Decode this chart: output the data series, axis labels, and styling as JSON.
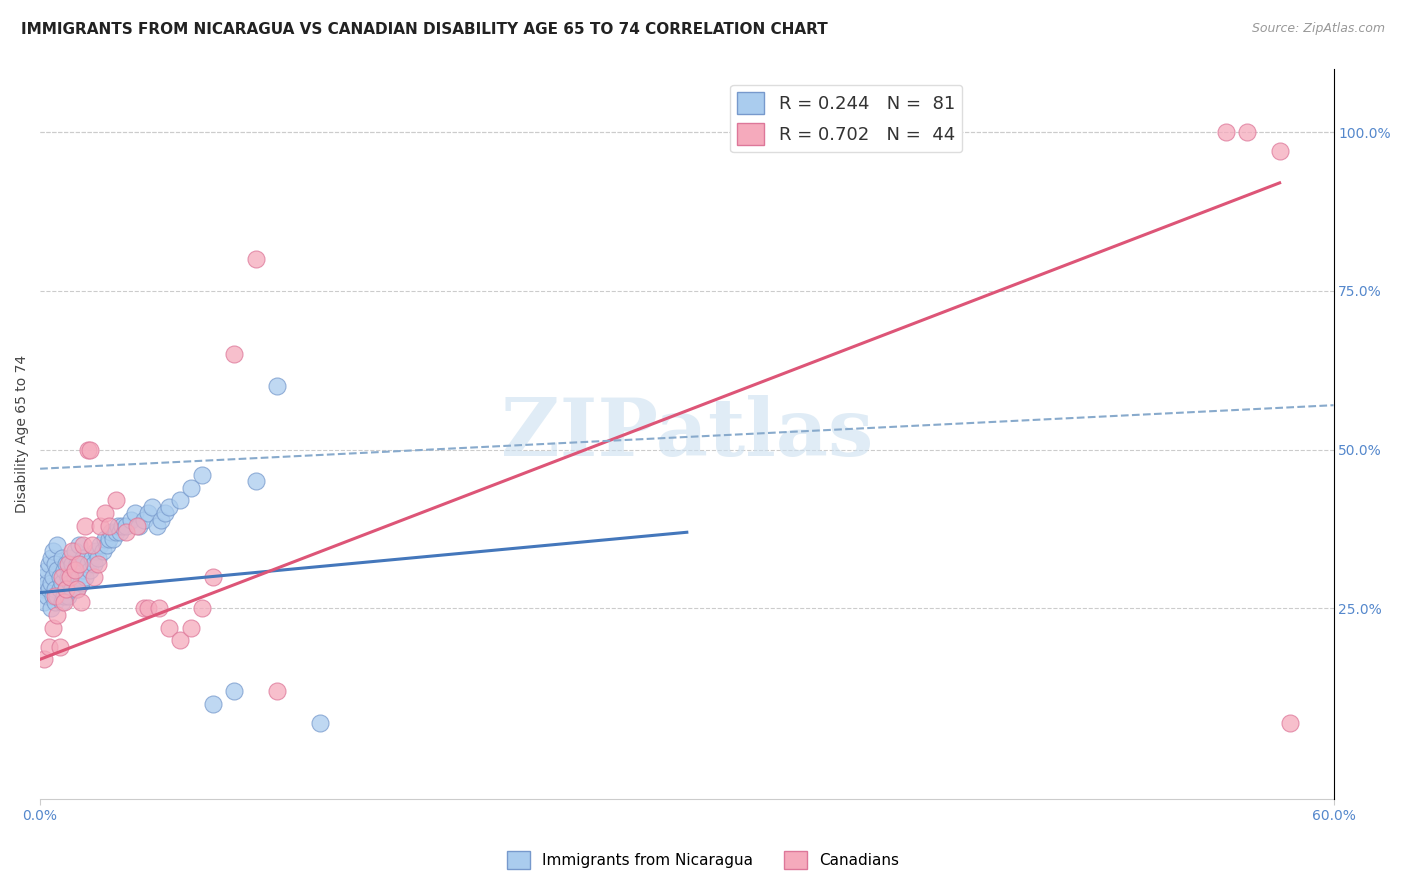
{
  "title": "IMMIGRANTS FROM NICARAGUA VS CANADIAN DISABILITY AGE 65 TO 74 CORRELATION CHART",
  "source": "Source: ZipAtlas.com",
  "ylabel": "Disability Age 65 to 74",
  "yticks": [
    "25.0%",
    "50.0%",
    "75.0%",
    "100.0%"
  ],
  "ytick_vals": [
    0.25,
    0.5,
    0.75,
    1.0
  ],
  "xmin": 0.0,
  "xmax": 0.6,
  "ymin": -0.05,
  "ymax": 1.1,
  "legend_r1": "R = 0.244",
  "legend_n1": "N =  81",
  "legend_r2": "R = 0.702",
  "legend_n2": "N =  44",
  "blue_color": "#aaccee",
  "pink_color": "#f5aabc",
  "blue_edge": "#7799cc",
  "pink_edge": "#dd7799",
  "trend_blue": "#4477bb",
  "trend_pink": "#dd5577",
  "trend_dashed_color": "#88aacc",
  "blue_scatter_x": [
    0.001,
    0.002,
    0.002,
    0.003,
    0.003,
    0.003,
    0.004,
    0.004,
    0.005,
    0.005,
    0.005,
    0.006,
    0.006,
    0.006,
    0.007,
    0.007,
    0.007,
    0.008,
    0.008,
    0.008,
    0.009,
    0.009,
    0.01,
    0.01,
    0.01,
    0.011,
    0.011,
    0.012,
    0.012,
    0.013,
    0.013,
    0.014,
    0.014,
    0.015,
    0.015,
    0.016,
    0.016,
    0.017,
    0.017,
    0.018,
    0.018,
    0.019,
    0.02,
    0.02,
    0.021,
    0.022,
    0.023,
    0.024,
    0.025,
    0.026,
    0.027,
    0.028,
    0.029,
    0.03,
    0.031,
    0.032,
    0.033,
    0.034,
    0.035,
    0.036,
    0.037,
    0.038,
    0.04,
    0.042,
    0.044,
    0.046,
    0.048,
    0.05,
    0.052,
    0.054,
    0.056,
    0.058,
    0.06,
    0.065,
    0.07,
    0.075,
    0.08,
    0.09,
    0.1,
    0.11,
    0.13
  ],
  "blue_scatter_y": [
    0.28,
    0.26,
    0.3,
    0.27,
    0.29,
    0.31,
    0.28,
    0.32,
    0.25,
    0.29,
    0.33,
    0.27,
    0.3,
    0.34,
    0.26,
    0.28,
    0.32,
    0.27,
    0.31,
    0.35,
    0.28,
    0.3,
    0.26,
    0.29,
    0.33,
    0.27,
    0.31,
    0.28,
    0.32,
    0.27,
    0.3,
    0.29,
    0.33,
    0.28,
    0.32,
    0.3,
    0.34,
    0.28,
    0.32,
    0.3,
    0.35,
    0.29,
    0.31,
    0.33,
    0.3,
    0.32,
    0.31,
    0.33,
    0.32,
    0.34,
    0.33,
    0.35,
    0.34,
    0.36,
    0.35,
    0.36,
    0.37,
    0.36,
    0.37,
    0.38,
    0.37,
    0.38,
    0.38,
    0.39,
    0.4,
    0.38,
    0.39,
    0.4,
    0.41,
    0.38,
    0.39,
    0.4,
    0.41,
    0.42,
    0.44,
    0.46,
    0.1,
    0.12,
    0.45,
    0.6,
    0.07
  ],
  "pink_scatter_x": [
    0.002,
    0.004,
    0.006,
    0.007,
    0.008,
    0.009,
    0.01,
    0.011,
    0.012,
    0.013,
    0.014,
    0.015,
    0.016,
    0.017,
    0.018,
    0.019,
    0.02,
    0.021,
    0.022,
    0.023,
    0.024,
    0.025,
    0.027,
    0.028,
    0.03,
    0.032,
    0.035,
    0.04,
    0.045,
    0.048,
    0.05,
    0.055,
    0.06,
    0.065,
    0.07,
    0.075,
    0.08,
    0.09,
    0.1,
    0.11,
    0.55,
    0.56,
    0.575,
    0.58
  ],
  "pink_scatter_y": [
    0.17,
    0.19,
    0.22,
    0.27,
    0.24,
    0.19,
    0.3,
    0.26,
    0.28,
    0.32,
    0.3,
    0.34,
    0.31,
    0.28,
    0.32,
    0.26,
    0.35,
    0.38,
    0.5,
    0.5,
    0.35,
    0.3,
    0.32,
    0.38,
    0.4,
    0.38,
    0.42,
    0.37,
    0.38,
    0.25,
    0.25,
    0.25,
    0.22,
    0.2,
    0.22,
    0.25,
    0.3,
    0.65,
    0.8,
    0.12,
    1.0,
    1.0,
    0.97,
    0.07
  ],
  "blue_trend_x": [
    0.0,
    0.3
  ],
  "blue_trend_y": [
    0.275,
    0.37
  ],
  "pink_trend_x": [
    0.0,
    0.575
  ],
  "pink_trend_y": [
    0.17,
    0.92
  ],
  "dashed_trend_x": [
    0.0,
    0.6
  ],
  "dashed_trend_y": [
    0.47,
    0.57
  ],
  "watermark": "ZIPatlas",
  "title_fontsize": 11,
  "axis_label_fontsize": 10,
  "tick_fontsize": 10
}
